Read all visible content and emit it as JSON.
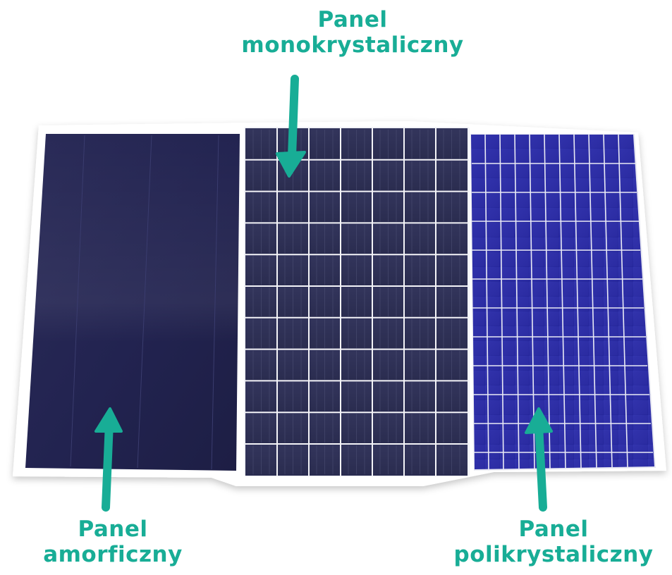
{
  "labels": {
    "mono": {
      "line1": "Panel",
      "line2": "monokrystaliczny"
    },
    "amorf": {
      "line1": "Panel",
      "line2": "amorficzny"
    },
    "poli": {
      "line1": "Panel",
      "line2": "polikrystaliczny"
    }
  },
  "colors": {
    "accent": "#18ad96",
    "amorphous_panel": "#24254f",
    "mono_panel": "#2c2e52",
    "poly_panel": "#2b2ca1",
    "busbar": "#ffffff"
  },
  "icons": [
    "arrow-down-icon",
    "arrow-up-icon"
  ]
}
